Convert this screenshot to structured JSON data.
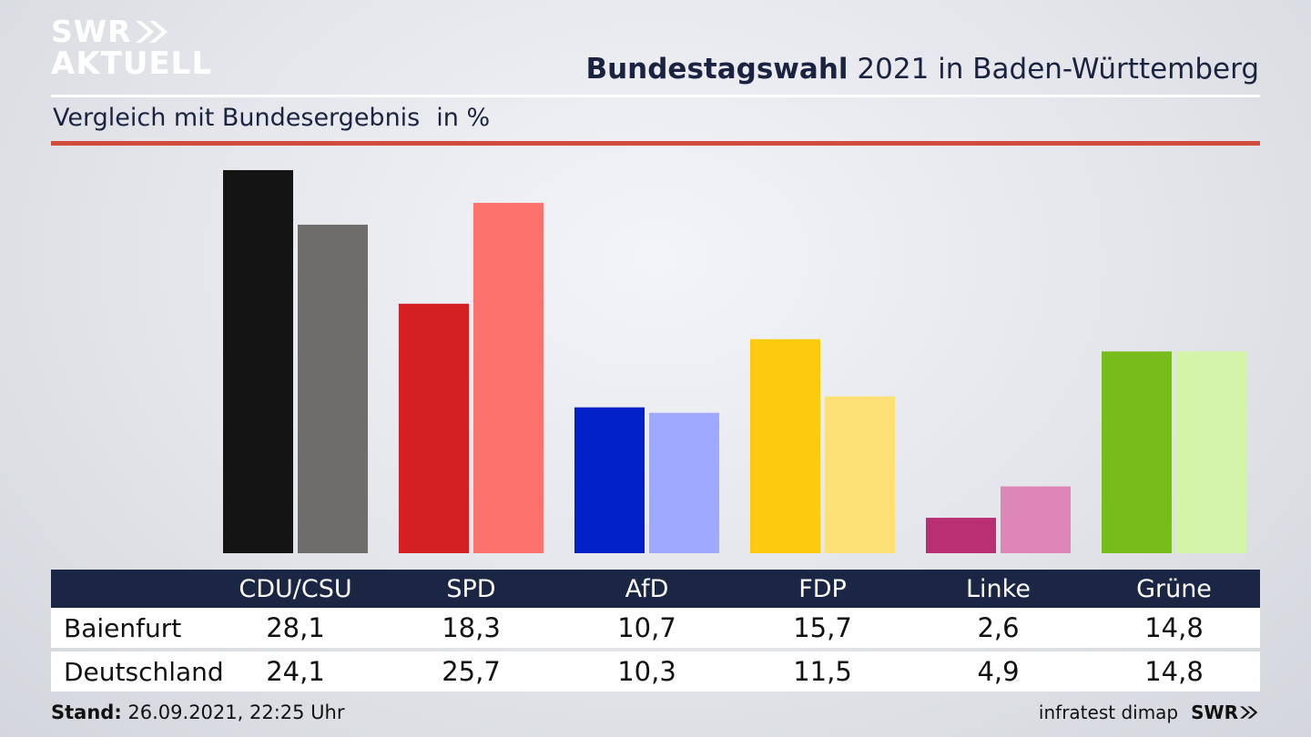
{
  "logo": {
    "line1": "SWR",
    "line2": "AKTUELL"
  },
  "header": {
    "title_bold": "Bundestagswahl",
    "title_rest": " 2021 in Baden-Württemberg",
    "subtitle": "Vergleich mit Bundesergebnis",
    "unit": "in %"
  },
  "chart_data": {
    "type": "bar",
    "title": "Bundestagswahl 2021 in Baden-Württemberg",
    "subtitle": "Vergleich mit Bundesergebnis in %",
    "categories": [
      "CDU/CSU",
      "SPD",
      "AfD",
      "FDP",
      "Linke",
      "Grüne"
    ],
    "series": [
      {
        "name": "Baienfurt",
        "values": [
          28.1,
          18.3,
          10.7,
          15.7,
          2.6,
          14.8
        ],
        "colors": [
          "#141414",
          "#d42022",
          "#0220c8",
          "#fdcb0d",
          "#ba2e74",
          "#78bc1b"
        ]
      },
      {
        "name": "Deutschland",
        "values": [
          24.1,
          25.7,
          10.3,
          11.5,
          4.9,
          14.8
        ],
        "colors": [
          "#6f6d6b",
          "#fe726d",
          "#9eaaff",
          "#fde175",
          "#df86b8",
          "#d4f5a8"
        ]
      }
    ],
    "ylim": [
      0,
      28.1
    ],
    "grid": false,
    "legend": "table-below"
  },
  "table": {
    "row_labels": [
      "Baienfurt",
      "Deutschland"
    ],
    "display_values": [
      [
        "28,1",
        "18,3",
        "10,7",
        "15,7",
        "2,6",
        "14,8"
      ],
      [
        "24,1",
        "25,7",
        "10,3",
        "11,5",
        "4,9",
        "14,8"
      ]
    ]
  },
  "footer": {
    "stand_label": "Stand:",
    "stand_value": " 26.09.2021, 22:25 Uhr",
    "source": "infratest dimap",
    "brand": "SWR"
  }
}
